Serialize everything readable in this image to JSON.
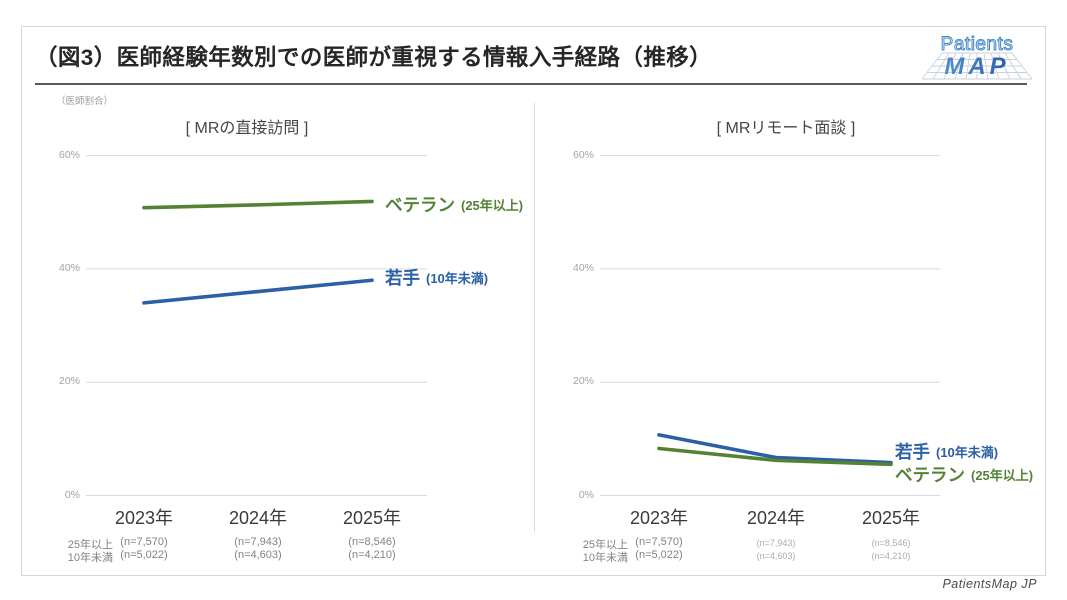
{
  "page": {
    "title": "（図3）医師経験年数別での医師が重視する情報入手経路（推移）",
    "unit_label": "（医師割合）",
    "footer": "PatientsMap JP",
    "logo": {
      "line1": "Patients",
      "line2": "MAP"
    }
  },
  "colors": {
    "veteran_green": "#548235",
    "young_blue": "#2b5fa6",
    "grid": "#dadada"
  },
  "chart_data": [
    {
      "type": "line",
      "title": "[ MRの直接訪問 ]",
      "categories": [
        "2023年",
        "2024年",
        "2025年"
      ],
      "x": [
        2023,
        2024,
        2025
      ],
      "ylim": [
        0,
        60
      ],
      "yticks": [
        "0%",
        "20%",
        "40%",
        "60%"
      ],
      "grid": "horizontal",
      "series": [
        {
          "name": "ベテラン",
          "qualifier": "(25年以上)",
          "color_key": "veteran_green",
          "values": [
            50.8,
            51.3,
            51.9
          ]
        },
        {
          "name": "若手",
          "qualifier": "(10年未満)",
          "color_key": "young_blue",
          "values": [
            34,
            36,
            38
          ]
        }
      ],
      "footnote_rows": [
        {
          "prefix": "25年以上",
          "values": [
            "(n=7,570)",
            "(n=7,943)",
            "(n=8,546)"
          ]
        },
        {
          "prefix": "10年未満",
          "values": [
            "(n=5,022)",
            "(n=4,603)",
            "(n=4,210)"
          ]
        }
      ]
    },
    {
      "type": "line",
      "title": "[ MRリモート面談 ]",
      "categories": [
        "2023年",
        "2024年",
        "2025年"
      ],
      "x": [
        2023,
        2024,
        2025
      ],
      "ylim": [
        0,
        60
      ],
      "yticks": [
        "0%",
        "20%",
        "40%",
        "60%"
      ],
      "grid": "horizontal",
      "series": [
        {
          "name": "若手",
          "qualifier": "(10年未満)",
          "color_key": "young_blue",
          "values": [
            10.7,
            6.7,
            5.8
          ]
        },
        {
          "name": "ベテラン",
          "qualifier": "(25年以上)",
          "color_key": "veteran_green",
          "values": [
            8.3,
            6.2,
            5.5
          ]
        }
      ],
      "footnote_rows": [
        {
          "prefix": "25年以上",
          "values": [
            "(n=7,570)",
            "(n=7,943)",
            "(n=8,546)"
          ]
        },
        {
          "prefix": "10年未満",
          "values": [
            "(n=5,022)",
            "(n=4,603)",
            "(n=4,210)"
          ]
        }
      ]
    }
  ]
}
